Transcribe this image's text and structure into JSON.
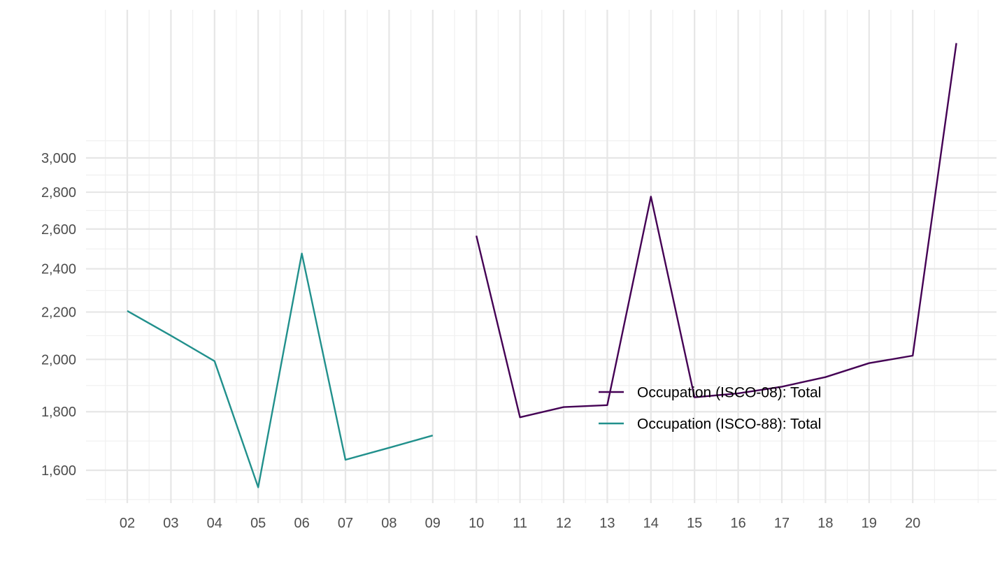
{
  "chart_data": {
    "type": "line",
    "title": "",
    "xlabel": "",
    "ylabel": "",
    "y_scale": "log",
    "x_tick_labels": [
      "02",
      "03",
      "04",
      "05",
      "06",
      "07",
      "08",
      "09",
      "10",
      "11",
      "12",
      "13",
      "14",
      "15",
      "16",
      "17",
      "18",
      "19",
      "20"
    ],
    "y_tick_labels": [
      "1,600",
      "1,800",
      "2,000",
      "2,200",
      "2,400",
      "2,600",
      "2,800",
      "3,000"
    ],
    "y_ticks": [
      1600,
      1800,
      2000,
      2200,
      2400,
      2600,
      2800,
      3000
    ],
    "series": [
      {
        "name": "Occupation (ISCO-08): Total",
        "color": "#440154",
        "x": [
          10,
          11,
          12,
          13,
          14,
          15,
          16,
          17,
          18,
          19,
          20,
          21
        ],
        "values": [
          2565,
          1780,
          1817,
          1824,
          2775,
          1853,
          1868,
          1893,
          1930,
          1985,
          2015,
          3780
        ]
      },
      {
        "name": "Occupation (ISCO-88): Total",
        "color": "#21908C",
        "x": [
          2,
          3,
          4,
          5,
          6,
          7,
          8,
          9
        ],
        "values": [
          2205,
          2098,
          1993,
          1546,
          2475,
          1634,
          1674,
          1716
        ]
      }
    ],
    "grid": true,
    "legend_position": "inside-bottom-right"
  }
}
